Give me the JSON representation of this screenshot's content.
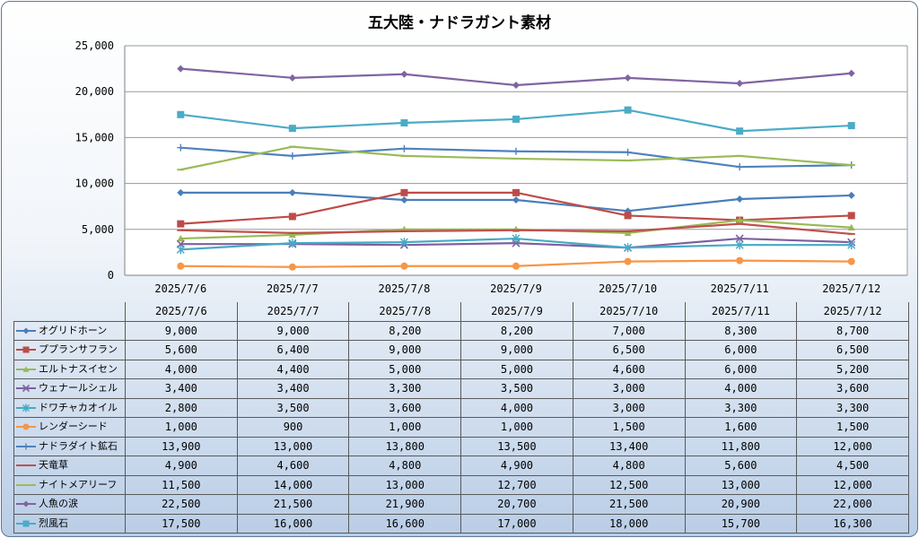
{
  "chart_data": {
    "type": "line",
    "title": "五大陸・ナドラガント素材",
    "xlabel": "",
    "ylabel": "",
    "ylim": [
      0,
      25000
    ],
    "yticks": [
      0,
      5000,
      10000,
      15000,
      20000,
      25000
    ],
    "ytick_labels": [
      "0",
      "5,000",
      "10,000",
      "15,000",
      "20,000",
      "25,000"
    ],
    "grid": true,
    "legend": "data-table",
    "categories": [
      "2025/7/6",
      "2025/7/7",
      "2025/7/8",
      "2025/7/9",
      "2025/7/10",
      "2025/7/11",
      "2025/7/12"
    ],
    "series": [
      {
        "name": "オグリドホーン",
        "color": "#4a7ebb",
        "marker": "diamond",
        "values": [
          9000,
          9000,
          8200,
          8200,
          7000,
          8300,
          8700
        ],
        "display": [
          "9,000",
          "9,000",
          "8,200",
          "8,200",
          "7,000",
          "8,300",
          "8,700"
        ]
      },
      {
        "name": "ププランサフラン",
        "color": "#be4b48",
        "marker": "square",
        "values": [
          5600,
          6400,
          9000,
          9000,
          6500,
          6000,
          6500
        ],
        "display": [
          "5,600",
          "6,400",
          "9,000",
          "9,000",
          "6,500",
          "6,000",
          "6,500"
        ]
      },
      {
        "name": "エルトナスイセン",
        "color": "#98b954",
        "marker": "triangle",
        "values": [
          4000,
          4400,
          5000,
          5000,
          4600,
          6000,
          5200
        ],
        "display": [
          "4,000",
          "4,400",
          "5,000",
          "5,000",
          "4,600",
          "6,000",
          "5,200"
        ]
      },
      {
        "name": "ウェナールシェル",
        "color": "#7d60a0",
        "marker": "x",
        "values": [
          3400,
          3400,
          3300,
          3500,
          3000,
          4000,
          3600
        ],
        "display": [
          "3,400",
          "3,400",
          "3,300",
          "3,500",
          "3,000",
          "4,000",
          "3,600"
        ]
      },
      {
        "name": "ドワチャカオイル",
        "color": "#46aac4",
        "marker": "star",
        "values": [
          2800,
          3500,
          3600,
          4000,
          3000,
          3300,
          3300
        ],
        "display": [
          "2,800",
          "3,500",
          "3,600",
          "4,000",
          "3,000",
          "3,300",
          "3,300"
        ]
      },
      {
        "name": "レンダーシード",
        "color": "#f79646",
        "marker": "circle",
        "values": [
          1000,
          900,
          1000,
          1000,
          1500,
          1600,
          1500
        ],
        "display": [
          "1,000",
          "900",
          "1,000",
          "1,000",
          "1,500",
          "1,600",
          "1,500"
        ]
      },
      {
        "name": "ナドラダイト鉱石",
        "color": "#4f81bd",
        "marker": "plus",
        "values": [
          13900,
          13000,
          13800,
          13500,
          13400,
          11800,
          12000
        ],
        "display": [
          "13,900",
          "13,000",
          "13,800",
          "13,500",
          "13,400",
          "11,800",
          "12,000"
        ]
      },
      {
        "name": "天竜草",
        "color": "#c0504d",
        "marker": "dash",
        "values": [
          4900,
          4600,
          4800,
          4900,
          4800,
          5600,
          4500
        ],
        "display": [
          "4,900",
          "4,600",
          "4,800",
          "4,900",
          "4,800",
          "5,600",
          "4,500"
        ]
      },
      {
        "name": "ナイトメアリーフ",
        "color": "#9bbb59",
        "marker": "dash",
        "values": [
          11500,
          14000,
          13000,
          12700,
          12500,
          13000,
          12000
        ],
        "display": [
          "11,500",
          "14,000",
          "13,000",
          "12,700",
          "12,500",
          "13,000",
          "12,000"
        ]
      },
      {
        "name": "人魚の涙",
        "color": "#8064a2",
        "marker": "diamond",
        "values": [
          22500,
          21500,
          21900,
          20700,
          21500,
          20900,
          22000
        ],
        "display": [
          "22,500",
          "21,500",
          "21,900",
          "20,700",
          "21,500",
          "20,900",
          "22,000"
        ]
      },
      {
        "name": "烈風石",
        "color": "#4bacc6",
        "marker": "square",
        "values": [
          17500,
          16000,
          16600,
          17000,
          18000,
          15700,
          16300
        ],
        "display": [
          "17,500",
          "16,000",
          "16,600",
          "17,000",
          "18,000",
          "15,700",
          "16,300"
        ]
      }
    ]
  }
}
